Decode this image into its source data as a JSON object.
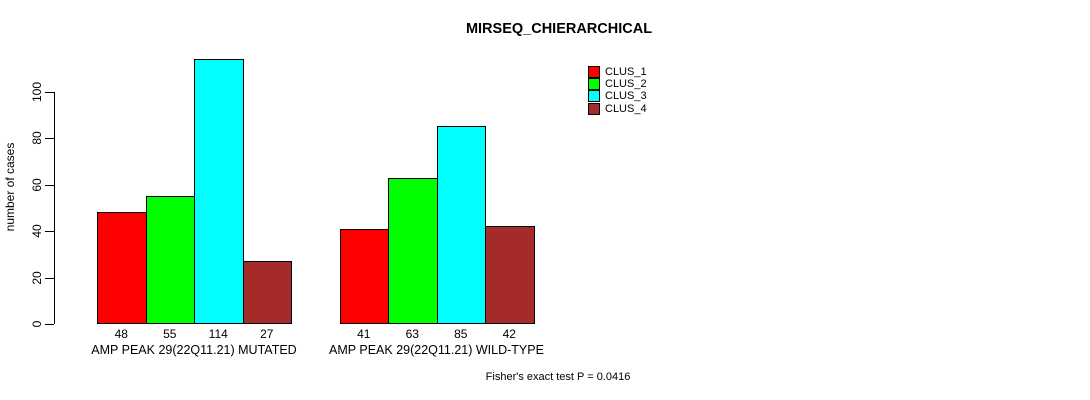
{
  "chart": {
    "title": "MIRSEQ_CHIERARCHICAL",
    "ylabel": "number of cases",
    "footnote": "Fisher's exact test P = 0.0416"
  },
  "chart_data": {
    "type": "bar",
    "title": "MIRSEQ_CHIERARCHICAL",
    "xlabel": "",
    "ylabel": "number of cases",
    "ylim": [
      0,
      116
    ],
    "yticks": [
      0,
      20,
      40,
      60,
      80,
      100
    ],
    "grid": false,
    "legend_position": "top-right",
    "categories": [
      "AMP PEAK 29(22Q11.21) MUTATED",
      "AMP PEAK 29(22Q11.21) WILD-TYPE"
    ],
    "series": [
      {
        "name": "CLUS_1",
        "color": "#ff0000",
        "values": [
          48,
          41
        ]
      },
      {
        "name": "CLUS_2",
        "color": "#00ff00",
        "values": [
          55,
          63
        ]
      },
      {
        "name": "CLUS_3",
        "color": "#00ffff",
        "values": [
          114,
          85
        ]
      },
      {
        "name": "CLUS_4",
        "color": "#a52a2a",
        "values": [
          27,
          42
        ]
      }
    ],
    "bar_value_labels": [
      [
        48,
        55,
        114,
        27
      ],
      [
        41,
        63,
        85,
        42
      ]
    ],
    "footnote": "Fisher's exact test P = 0.0416"
  }
}
